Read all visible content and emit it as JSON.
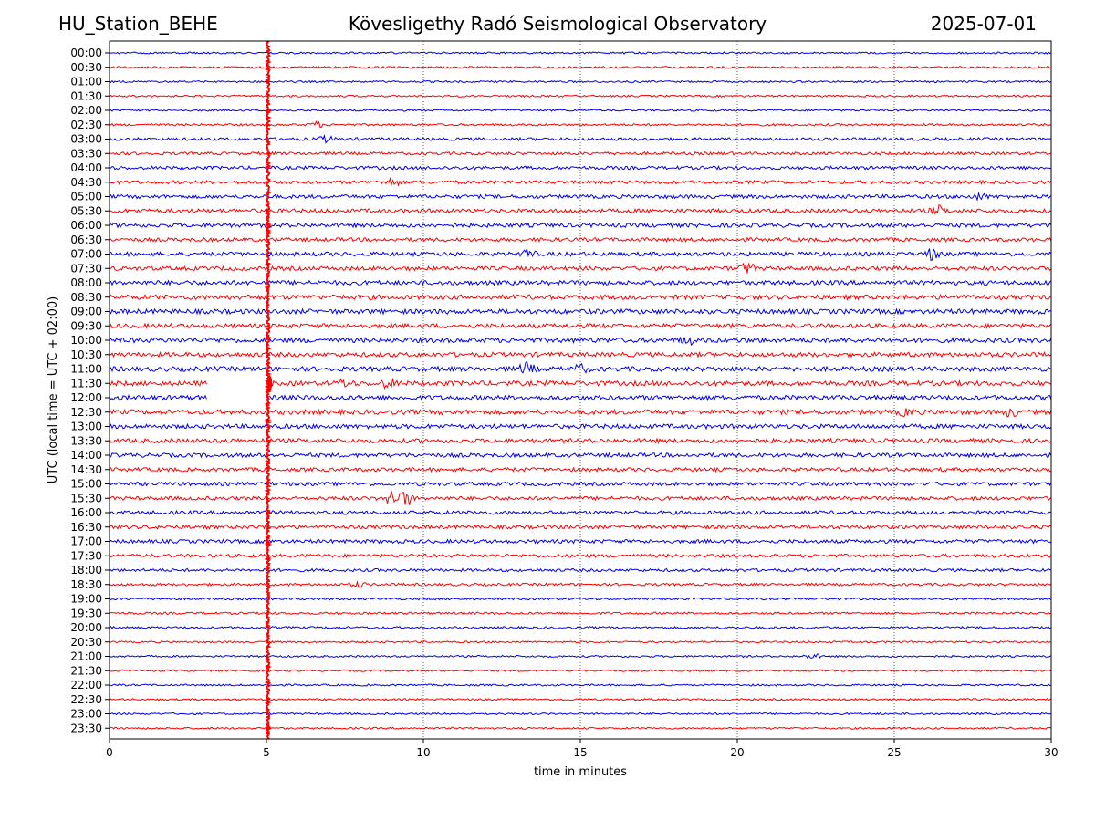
{
  "header": {
    "station": "HU_Station_BEHE",
    "observatory": "Kövesligethy Radó Seismological Observatory",
    "date": "2025-07-01"
  },
  "chart_data": {
    "type": "line",
    "xlabel": "time in minutes",
    "ylabel": "UTC (local time = UTC + 02:00)",
    "xlim": [
      0,
      30
    ],
    "xticks": [
      "0",
      "5",
      "10",
      "15",
      "20",
      "25",
      "30"
    ],
    "grid": "vertical dotted lines at x ticks",
    "row_labels": [
      "00:00",
      "00:30",
      "01:00",
      "01:30",
      "02:00",
      "02:30",
      "03:00",
      "03:30",
      "04:00",
      "04:30",
      "05:00",
      "05:30",
      "06:00",
      "06:30",
      "07:00",
      "07:30",
      "08:00",
      "08:30",
      "09:00",
      "09:30",
      "10:00",
      "10:30",
      "11:00",
      "11:30",
      "12:00",
      "12:30",
      "13:00",
      "13:30",
      "14:00",
      "14:30",
      "15:00",
      "15:30",
      "16:00",
      "16:30",
      "17:00",
      "17:30",
      "18:00",
      "18:30",
      "19:00",
      "19:30",
      "20:00",
      "20:30",
      "21:00",
      "21:30",
      "22:00",
      "22:30",
      "23:00",
      "23:30"
    ],
    "row_colors": [
      "#0000ee",
      "#ff0000"
    ],
    "row_noise_amplitude": [
      1,
      1,
      1,
      1,
      1,
      1.2,
      1.6,
      1.6,
      1.8,
      1.8,
      2,
      2.2,
      2.2,
      2,
      2.2,
      2.2,
      2.4,
      2.6,
      2.6,
      2.4,
      2.6,
      2.4,
      2.6,
      2.6,
      2.6,
      2.6,
      2.4,
      2.4,
      2.2,
      2,
      2,
      2,
      2,
      2,
      2,
      1.8,
      1.6,
      1.4,
      1.2,
      1.2,
      1.2,
      1,
      1,
      1,
      1,
      1,
      1,
      1
    ],
    "spike": {
      "x": 5.05,
      "description": "large-amplitude signal present in every row"
    },
    "events": [
      {
        "row": "02:30",
        "x": 6.6,
        "amplitude": 3
      },
      {
        "row": "03:00",
        "x": 6.9,
        "amplitude": 3
      },
      {
        "row": "04:30",
        "x": 9.0,
        "amplitude": 4
      },
      {
        "row": "05:00",
        "x": 27.7,
        "amplitude": 3
      },
      {
        "row": "05:30",
        "x": 26.4,
        "amplitude": 5
      },
      {
        "row": "07:00",
        "x": 13.3,
        "amplitude": 5
      },
      {
        "row": "07:00",
        "x": 26.2,
        "amplitude": 6
      },
      {
        "row": "07:30",
        "x": 20.3,
        "amplitude": 6
      },
      {
        "row": "10:00",
        "x": 18.4,
        "amplitude": 4
      },
      {
        "row": "11:00",
        "x": 13.3,
        "amplitude": 6
      },
      {
        "row": "11:00",
        "x": 15.0,
        "amplitude": 4
      },
      {
        "row": "11:30",
        "x": 7.5,
        "amplitude": 4
      },
      {
        "row": "11:30",
        "x": 8.9,
        "amplitude": 5
      },
      {
        "row": "12:30",
        "x": 25.4,
        "amplitude": 4
      },
      {
        "row": "12:30",
        "x": 28.7,
        "amplitude": 4
      },
      {
        "row": "15:30",
        "x": 9.0,
        "amplitude": 10
      },
      {
        "row": "15:30",
        "x": 9.45,
        "amplitude": 10
      },
      {
        "row": "18:30",
        "x": 7.9,
        "amplitude": 3
      },
      {
        "row": "21:00",
        "x": 22.4,
        "amplitude": 3
      }
    ],
    "gaps": [
      {
        "row": "11:30",
        "x_start": 3.1,
        "x_end": 5.1
      },
      {
        "row": "12:00",
        "x_start": 3.1,
        "x_end": 5.1
      }
    ]
  }
}
